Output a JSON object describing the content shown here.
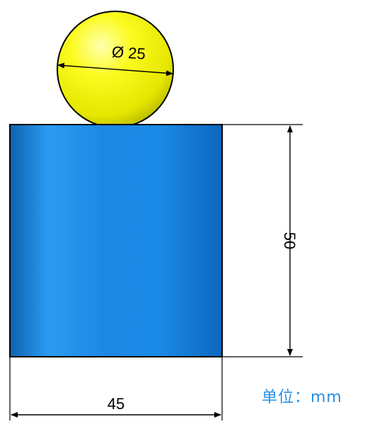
{
  "drawing": {
    "sphere": {
      "diameter_label": "Ø 25",
      "color": "#f2f200"
    },
    "cylinder": {
      "color": "#1a8ae6"
    },
    "dimensions": {
      "height_label": "50",
      "width_label": "45"
    },
    "unit_label": "单位：mm",
    "unit_color": "#2a8fe0"
  }
}
